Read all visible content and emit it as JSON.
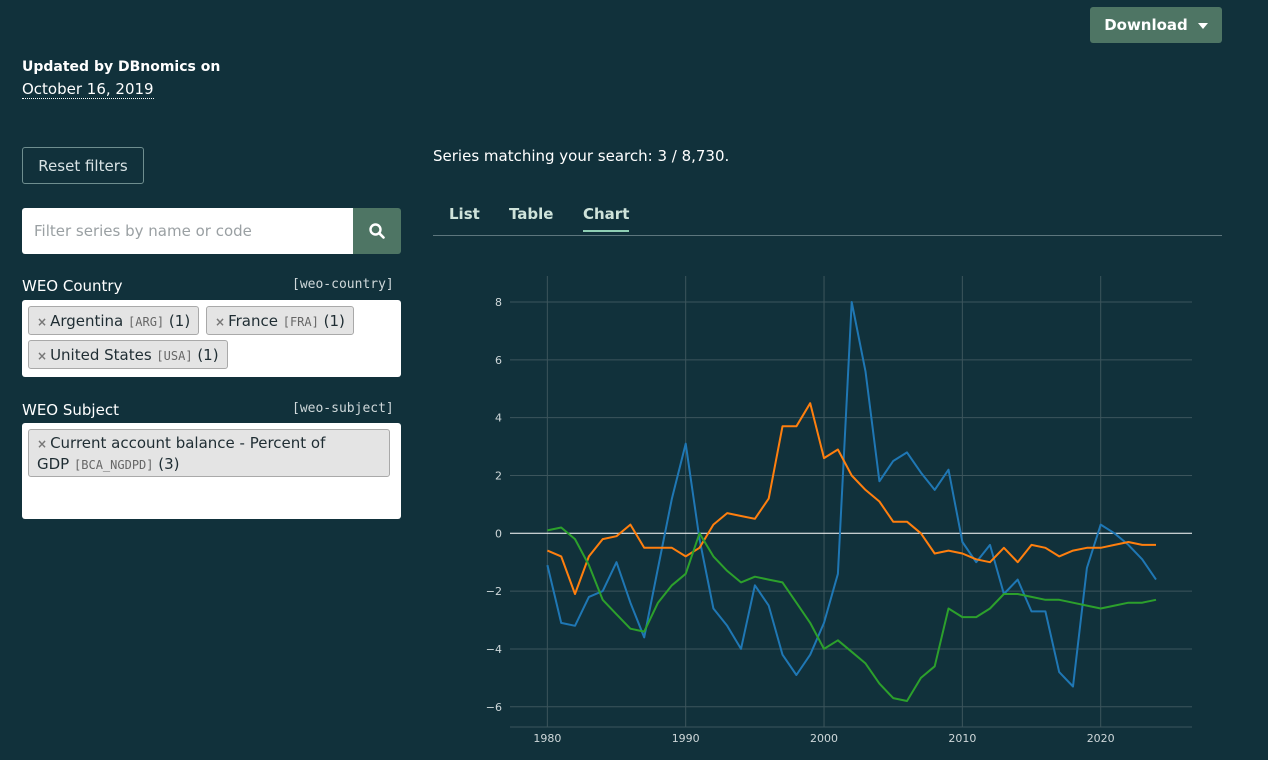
{
  "header": {
    "download_label": "Download",
    "updated_label": "Updated by DBnomics on",
    "updated_date": "October 16, 2019"
  },
  "sidebar": {
    "reset_label": "Reset filters",
    "search": {
      "placeholder": "Filter series by name or code",
      "value": ""
    },
    "facets": [
      {
        "title": "WEO Country",
        "code": "[weo-country]",
        "tags": [
          {
            "label": "Argentina",
            "code": "[ARG]",
            "count": "(1)"
          },
          {
            "label": "France",
            "code": "[FRA]",
            "count": "(1)"
          },
          {
            "label": "United States",
            "code": "[USA]",
            "count": "(1)"
          }
        ]
      },
      {
        "title": "WEO Subject",
        "code": "[weo-subject]",
        "tags": [
          {
            "label_line1": "Current account balance - Percent of",
            "label_line2": "GDP",
            "code": "[BCA_NGDPD]",
            "count": "(3)"
          }
        ]
      }
    ]
  },
  "main": {
    "matching_text": "Series matching your search: 3 / 8,730.",
    "tabs": [
      {
        "label": "List",
        "active": false
      },
      {
        "label": "Table",
        "active": false
      },
      {
        "label": "Chart",
        "active": true
      }
    ]
  },
  "colors": {
    "background": "#11313b",
    "accent": "#4e7564",
    "grid": "#3c555c",
    "zero_line": "#ffffff",
    "tick": "#cfd8da"
  },
  "chart_data": {
    "type": "line",
    "title": "",
    "xlabel": "",
    "ylabel": "",
    "xlim": [
      1977.3,
      2026.6
    ],
    "ylim": [
      -6.7,
      8.9
    ],
    "x_ticks": [
      1980,
      1990,
      2000,
      2010,
      2020
    ],
    "y_ticks": [
      8,
      6,
      4,
      2,
      0,
      -2,
      -4,
      -6
    ],
    "x": [
      1980,
      1981,
      1982,
      1983,
      1984,
      1985,
      1986,
      1987,
      1988,
      1989,
      1990,
      1991,
      1992,
      1993,
      1994,
      1995,
      1996,
      1997,
      1998,
      1999,
      2000,
      2001,
      2002,
      2003,
      2004,
      2005,
      2006,
      2007,
      2008,
      2009,
      2010,
      2011,
      2012,
      2013,
      2014,
      2015,
      2016,
      2017,
      2018,
      2019,
      2020,
      2021,
      2022,
      2023,
      2024
    ],
    "series": [
      {
        "name": "Argentina",
        "color": "#1f77b4",
        "values": [
          -1.1,
          -3.1,
          -3.2,
          -2.2,
          -2.0,
          -1.0,
          -2.4,
          -3.6,
          -1.2,
          1.2,
          3.1,
          -0.2,
          -2.6,
          -3.2,
          -4.0,
          -1.8,
          -2.5,
          -4.2,
          -4.9,
          -4.2,
          -3.1,
          -1.4,
          8.0,
          5.6,
          1.8,
          2.5,
          2.8,
          2.1,
          1.5,
          2.2,
          -0.3,
          -1.0,
          -0.4,
          -2.1,
          -1.6,
          -2.7,
          -2.7,
          -4.8,
          -5.3,
          -1.2,
          0.3,
          0.0,
          -0.4,
          -0.9,
          -1.6
        ]
      },
      {
        "name": "France",
        "color": "#ff7f0e",
        "values": [
          -0.6,
          -0.8,
          -2.1,
          -0.8,
          -0.2,
          -0.1,
          0.3,
          -0.5,
          -0.5,
          -0.5,
          -0.8,
          -0.5,
          0.3,
          0.7,
          0.6,
          0.5,
          1.2,
          3.7,
          3.7,
          4.5,
          2.6,
          2.9,
          2.0,
          1.5,
          1.1,
          0.4,
          0.4,
          0.0,
          -0.7,
          -0.6,
          -0.7,
          -0.9,
          -1.0,
          -0.5,
          -1.0,
          -0.4,
          -0.5,
          -0.8,
          -0.6,
          -0.5,
          -0.5,
          -0.4,
          -0.3,
          -0.4,
          -0.4
        ]
      },
      {
        "name": "United States",
        "color": "#2ca02c",
        "values": [
          0.1,
          0.2,
          -0.2,
          -1.1,
          -2.3,
          -2.8,
          -3.3,
          -3.4,
          -2.4,
          -1.8,
          -1.4,
          0.0,
          -0.8,
          -1.3,
          -1.7,
          -1.5,
          -1.6,
          -1.7,
          -2.4,
          -3.1,
          -4.0,
          -3.7,
          -4.1,
          -4.5,
          -5.2,
          -5.7,
          -5.8,
          -5.0,
          -4.6,
          -2.6,
          -2.9,
          -2.9,
          -2.6,
          -2.1,
          -2.1,
          -2.2,
          -2.3,
          -2.3,
          -2.4,
          -2.5,
          -2.6,
          -2.5,
          -2.4,
          -2.4,
          -2.3
        ]
      }
    ]
  }
}
